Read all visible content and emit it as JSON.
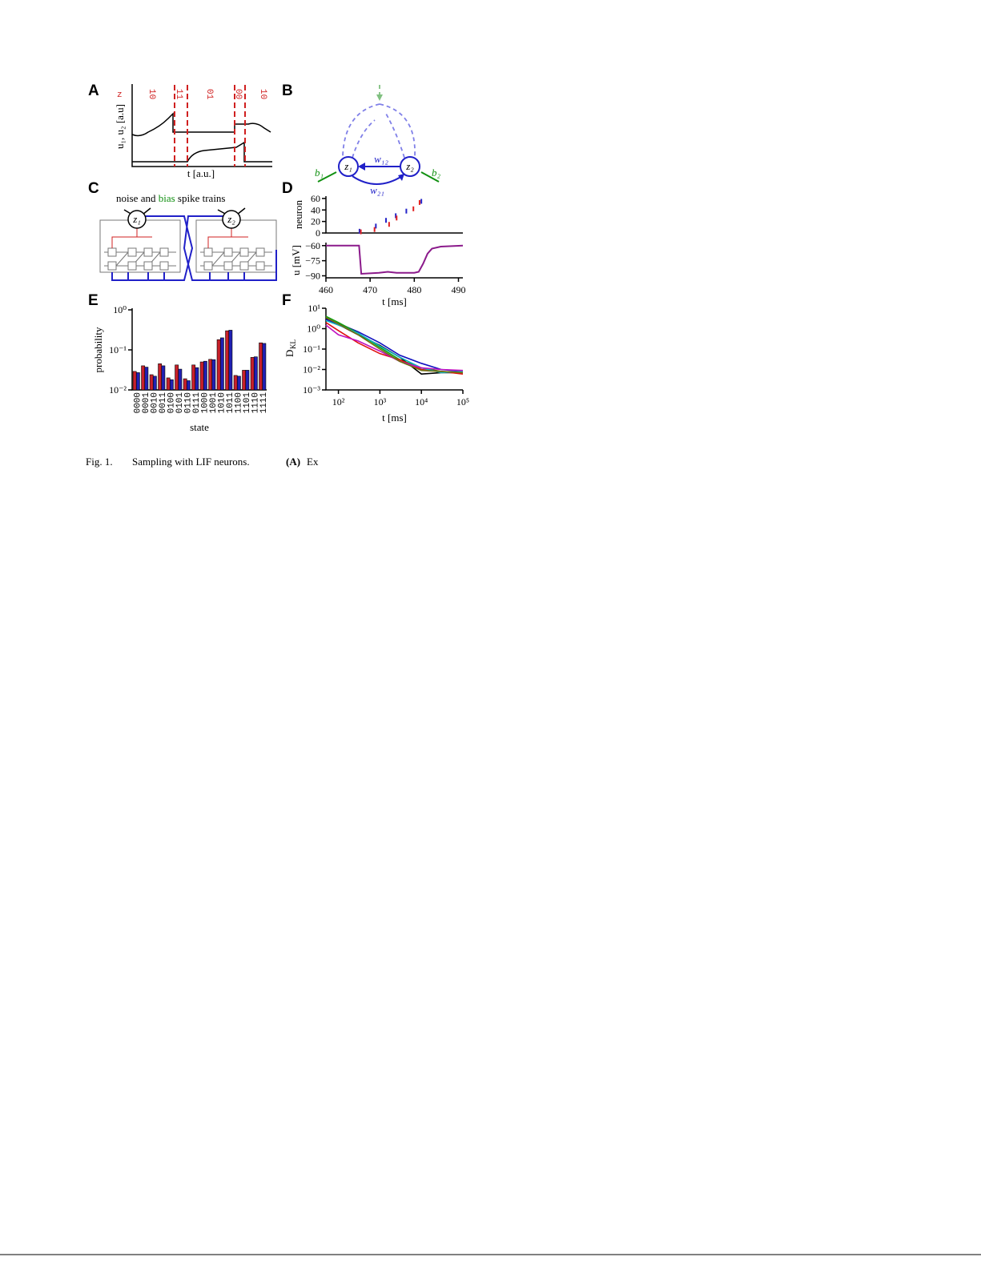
{
  "figure": {
    "panels": {
      "A": {
        "label": "A",
        "state_label": "z",
        "states": [
          "10",
          "11",
          "01",
          "00",
          "10"
        ],
        "y_label": "u₁, u₂ [a.u]",
        "x_label": "t [a.u.]"
      },
      "B": {
        "label": "B",
        "nodes": [
          "z₁",
          "z₂"
        ],
        "weights": [
          "w₁₂",
          "w₂₁"
        ],
        "biases": [
          "b₁",
          "b₂"
        ]
      },
      "C": {
        "label": "C",
        "title_parts": [
          "noise and ",
          "bias",
          " spike trains"
        ],
        "nodes": [
          "z₁",
          "z₂"
        ]
      },
      "D": {
        "label": "D",
        "x_label": "t [ms]",
        "xlim": [
          460,
          491
        ],
        "xticks": [
          460,
          470,
          480,
          490
        ],
        "raster": {
          "y_label": "neuron",
          "ylim": [
            0,
            64
          ],
          "yticks": [
            0,
            20,
            40,
            60
          ],
          "series": [
            {
              "color": "#2323c8",
              "x": [
                467.6,
                471.3,
                473.6,
                475.8,
                478.2,
                481.6
              ],
              "y": [
                3,
                12,
                22,
                30,
                38,
                55
              ]
            },
            {
              "color": "#e02020",
              "x": [
                467.9,
                471.0,
                474.3,
                476.0,
                479.8,
                481.2
              ],
              "y": [
                2,
                6,
                15,
                26,
                42,
                53
              ]
            }
          ]
        },
        "trace": {
          "y_label": "u [mV]",
          "ylim": [
            -92,
            -57
          ],
          "yticks": [
            {
              "value": -60,
              "label": "−60"
            },
            {
              "value": -75,
              "label": "−75"
            },
            {
              "value": -90,
              "label": "−90"
            }
          ],
          "color": "#8b1a8b",
          "x": [
            460,
            467.5,
            468,
            472,
            474,
            476,
            480,
            481,
            482,
            483,
            484,
            486,
            491
          ],
          "y": [
            -60,
            -60,
            -88,
            -87,
            -86,
            -87,
            -87,
            -86,
            -78,
            -68,
            -63,
            -61,
            -60
          ]
        }
      },
      "E": {
        "label": "E",
        "type": "bar",
        "log_y": true,
        "x_label": "state",
        "y_label": "probability",
        "ylim": [
          0.01,
          1
        ],
        "yticks": [
          {
            "value": 1,
            "label": "10⁰"
          },
          {
            "value": 0.1,
            "label": "10⁻¹"
          },
          {
            "value": 0.01,
            "label": "10⁻²"
          }
        ],
        "categories": [
          "0000",
          "0001",
          "0010",
          "0011",
          "0100",
          "0101",
          "0110",
          "0111",
          "1000",
          "1001",
          "1010",
          "1011",
          "1100",
          "1101",
          "1110",
          "1111"
        ],
        "series": [
          {
            "color": "#c8202a",
            "values": [
              0.029,
              0.04,
              0.024,
              0.045,
              0.02,
              0.042,
              0.019,
              0.042,
              0.05,
              0.058,
              0.18,
              0.3,
              0.023,
              0.031,
              0.065,
              0.15
            ]
          },
          {
            "color": "#2020b4",
            "values": [
              0.027,
              0.037,
              0.022,
              0.04,
              0.018,
              0.033,
              0.017,
              0.036,
              0.052,
              0.057,
              0.2,
              0.31,
              0.022,
              0.031,
              0.067,
              0.145
            ]
          }
        ]
      },
      "F": {
        "label": "F",
        "type": "line",
        "log_x": true,
        "log_y": true,
        "x_label": "t [ms]",
        "y_label": "D",
        "y_label_sub": "KL",
        "xlim": [
          50,
          100000
        ],
        "ylim": [
          0.001,
          10
        ],
        "xticks": [
          {
            "value": 100,
            "label": "10²"
          },
          {
            "value": 1000,
            "label": "10³"
          },
          {
            "value": 10000,
            "label": "10⁴"
          },
          {
            "value": 100000,
            "label": "10⁵"
          }
        ],
        "yticks": [
          {
            "value": 10,
            "label": "10¹"
          },
          {
            "value": 1,
            "label": "10⁰"
          },
          {
            "value": 0.1,
            "label": "10⁻¹"
          },
          {
            "value": 0.01,
            "label": "10⁻²"
          },
          {
            "value": 0.001,
            "label": "10⁻³"
          }
        ],
        "x": [
          50,
          100,
          300,
          1000,
          3000,
          10000,
          30000,
          100000
        ],
        "series": [
          {
            "color": "#000000",
            "values": [
              3.0,
              1.6,
              0.5,
              0.15,
              0.04,
              0.006,
              0.007,
              0.007
            ]
          },
          {
            "color": "#1010c0",
            "values": [
              2.8,
              1.8,
              0.7,
              0.2,
              0.05,
              0.02,
              0.01,
              0.008
            ]
          },
          {
            "color": "#10a010",
            "values": [
              4.0,
              2.0,
              0.6,
              0.12,
              0.03,
              0.012,
              0.008,
              0.007
            ]
          },
          {
            "color": "#e01010",
            "values": [
              2.0,
              0.8,
              0.2,
              0.06,
              0.03,
              0.01,
              0.008,
              0.006
            ]
          },
          {
            "color": "#10b0c0",
            "values": [
              2.5,
              1.5,
              0.6,
              0.14,
              0.04,
              0.012,
              0.007,
              0.008
            ]
          },
          {
            "color": "#c010c0",
            "values": [
              1.5,
              0.5,
              0.25,
              0.08,
              0.025,
              0.012,
              0.01,
              0.009
            ]
          },
          {
            "color": "#707010",
            "values": [
              3.5,
              1.7,
              0.5,
              0.1,
              0.025,
              0.009,
              0.008,
              0.007
            ]
          }
        ]
      }
    }
  },
  "caption": {
    "figure_number": "Fig. 1.",
    "title": "Sampling with LIF neurons.",
    "panel_ref": "(A)",
    "text": "Ex"
  }
}
